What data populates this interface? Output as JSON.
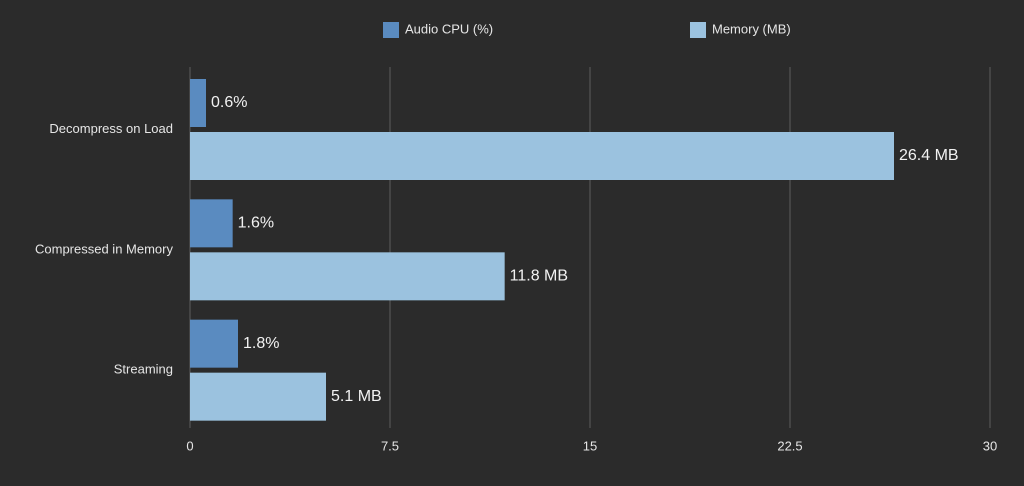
{
  "chart_data": {
    "type": "hbar",
    "categories": [
      "Decompress on Load",
      "Compressed in Memory",
      "Streaming"
    ],
    "series": [
      {
        "name": "Audio CPU (%)",
        "color": "#5a8bc0",
        "values": [
          0.6,
          1.6,
          1.8
        ],
        "value_labels": [
          "0.6%",
          "1.6%",
          "1.8%"
        ]
      },
      {
        "name": "Memory (MB)",
        "color": "#9bc2df",
        "values": [
          26.4,
          11.8,
          5.1
        ],
        "value_labels": [
          "26.4 MB",
          "11.8 MB",
          "5.1 MB"
        ]
      }
    ],
    "xlim": [
      0,
      30
    ],
    "xticks": [
      0,
      7.5,
      15,
      22.5,
      30
    ],
    "grid": true,
    "legend": "top"
  }
}
